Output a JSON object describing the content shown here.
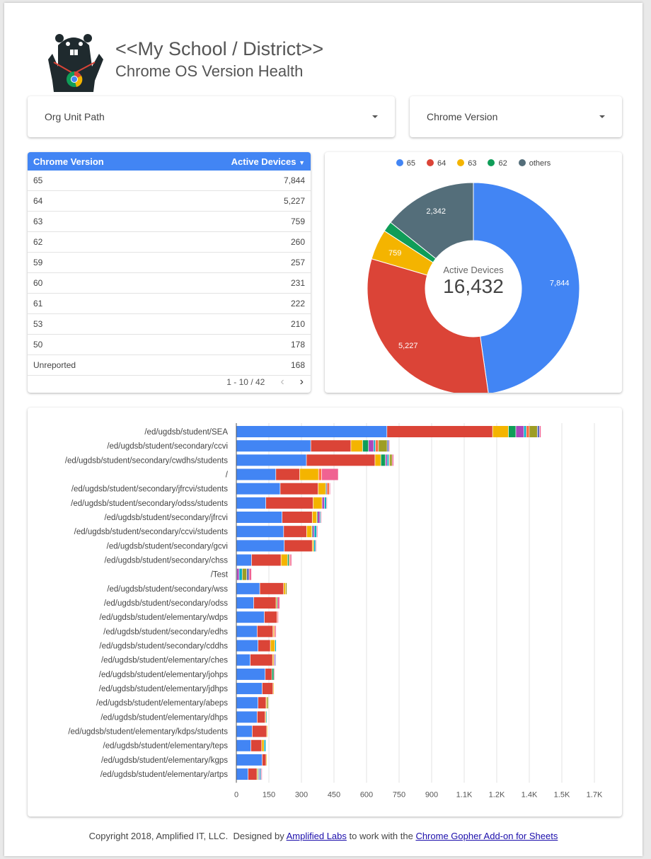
{
  "header": {
    "title": "<<My School / District>>",
    "subtitle": "Chrome OS Version Health",
    "logo": "gopher-chrome-logo"
  },
  "filters": [
    {
      "label": "Org Unit Path"
    },
    {
      "label": "Chrome Version"
    }
  ],
  "table": {
    "columns": [
      "Chrome Version",
      "Active Devices"
    ],
    "sort_icon": "caret-down",
    "rows": [
      [
        "65",
        "7,844"
      ],
      [
        "64",
        "5,227"
      ],
      [
        "63",
        "759"
      ],
      [
        "62",
        "260"
      ],
      [
        "59",
        "257"
      ],
      [
        "60",
        "231"
      ],
      [
        "61",
        "222"
      ],
      [
        "53",
        "210"
      ],
      [
        "50",
        "178"
      ],
      [
        "Unreported",
        "168"
      ]
    ],
    "pagination": "1 - 10 / 42"
  },
  "donut": {
    "center_label": "Active Devices",
    "center_value": "16,432",
    "legend": [
      "65",
      "64",
      "63",
      "62",
      "others"
    ],
    "values": [
      7844,
      5227,
      759,
      260,
      2342
    ],
    "labels": [
      "7,844",
      "5,227",
      "759",
      "",
      "2,342"
    ],
    "colors": [
      "#4285f4",
      "#db4437",
      "#f4b400",
      "#0f9d58",
      "#546e7a"
    ]
  },
  "chart_data": {
    "type": "bar",
    "orientation": "horizontal",
    "stacked": true,
    "categories": [
      "/ed/ugdsb/student/SEA",
      "/ed/ugdsb/student/secondary/ccvi",
      "/ed/ugdsb/student/secondary/cwdhs/students",
      "/",
      "/ed/ugdsb/student/secondary/jfrcvi/students",
      "/ed/ugdsb/student/secondary/odss/students",
      "/ed/ugdsb/student/secondary/jfrcvi",
      "/ed/ugdsb/student/secondary/ccvi/students",
      "/ed/ugdsb/student/secondary/gcvi",
      "/ed/ugdsb/student/secondary/chss",
      "/Test",
      "/ed/ugdsb/student/secondary/wss",
      "/ed/ugdsb/student/secondary/odss",
      "/ed/ugdsb/student/elementary/wdps",
      "/ed/ugdsb/student/secondary/edhs",
      "/ed/ugdsb/student/secondary/cddhs",
      "/ed/ugdsb/student/elementary/ches",
      "/ed/ugdsb/student/elementary/johps",
      "/ed/ugdsb/student/elementary/jdhps",
      "/ed/ugdsb/student/elementary/abeps",
      "/ed/ugdsb/student/elementary/dhps",
      "/ed/ugdsb/student/elementary/kdps/students",
      "/ed/ugdsb/student/elementary/teps",
      "/ed/ugdsb/student/elementary/kgps",
      "/ed/ugdsb/student/elementary/artps"
    ],
    "series": [
      {
        "color": "#4285f4",
        "values": [
          695,
          344,
          324,
          183,
          203,
          137,
          212,
          219,
          222,
          71,
          3,
          109,
          81,
          130,
          97,
          101,
          65,
          134,
          120,
          101,
          97,
          74,
          68,
          120,
          55
        ]
      },
      {
        "color": "#db4437",
        "values": [
          487,
          185,
          316,
          110,
          175,
          218,
          139,
          106,
          129,
          136,
          0,
          110,
          103,
          58,
          73,
          57,
          103,
          31,
          50,
          37,
          37,
          67,
          50,
          18,
          41
        ]
      },
      {
        "color": "#f4b400",
        "values": [
          73,
          54,
          27,
          87,
          35,
          41,
          21,
          24,
          7,
          30,
          0,
          9,
          3,
          0,
          4,
          21,
          6,
          0,
          4,
          4,
          4,
          3,
          11,
          3,
          4
        ]
      },
      {
        "color": "#0f9d58",
        "values": [
          34,
          27,
          21,
          0,
          3,
          0,
          3,
          3,
          0,
          7,
          0,
          0,
          3,
          0,
          0,
          0,
          0,
          9,
          0,
          0,
          0,
          0,
          0,
          0,
          4
        ]
      },
      {
        "color": "#ab47bc",
        "values": [
          37,
          24,
          8,
          0,
          3,
          11,
          11,
          8,
          0,
          0,
          11,
          0,
          0,
          0,
          0,
          0,
          5,
          0,
          0,
          0,
          0,
          0,
          0,
          0,
          4
        ]
      },
      {
        "color": "#00acc1",
        "values": [
          11,
          8,
          8,
          0,
          0,
          9,
          4,
          11,
          8,
          0,
          14,
          0,
          0,
          0,
          0,
          6,
          0,
          0,
          0,
          0,
          4,
          0,
          8,
          0,
          4
        ]
      },
      {
        "color": "#ff7043",
        "values": [
          14,
          14,
          4,
          14,
          11,
          0,
          0,
          0,
          0,
          5,
          0,
          0,
          0,
          3,
          6,
          0,
          0,
          0,
          0,
          0,
          0,
          0,
          0,
          0,
          0
        ]
      },
      {
        "color": "#9e9d24",
        "values": [
          37,
          40,
          11,
          0,
          0,
          0,
          0,
          0,
          0,
          0,
          21,
          6,
          0,
          0,
          0,
          0,
          0,
          0,
          0,
          7,
          0,
          0,
          0,
          0,
          0
        ]
      },
      {
        "color": "#5c6bc0",
        "values": [
          10,
          8,
          0,
          0,
          0,
          0,
          0,
          0,
          0,
          0,
          11,
          0,
          0,
          0,
          0,
          0,
          4,
          0,
          0,
          0,
          0,
          0,
          0,
          0,
          4
        ]
      },
      {
        "color": "#f06292",
        "values": [
          7,
          4,
          7,
          77,
          2,
          2,
          4,
          5,
          4,
          7,
          11,
          0,
          11,
          4,
          5,
          0,
          0,
          3,
          0,
          0,
          0,
          0,
          0,
          0,
          4
        ]
      }
    ],
    "xticks": [
      "0",
      "150",
      "300",
      "450",
      "600",
      "750",
      "900",
      "1.1K",
      "1.2K",
      "1.4K",
      "1.5K",
      "1.7K"
    ],
    "xtick_values": [
      0,
      150,
      300,
      450,
      600,
      750,
      900,
      1050,
      1200,
      1350,
      1500,
      1650
    ],
    "xlim": [
      0,
      1700
    ],
    "grid": true,
    "legend": "none"
  },
  "footer": {
    "prefix": "Copyright 2018, Amplified IT, LLC.  Designed by ",
    "link1": "Amplified Labs",
    "middle": " to work with the ",
    "link2": "Chrome Gopher Add-on for Sheets"
  }
}
